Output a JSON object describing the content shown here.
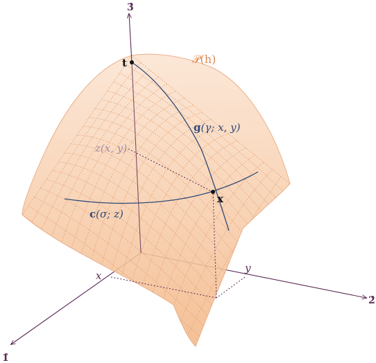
{
  "axes": {
    "e1": "1̂",
    "e2": "2̂",
    "e3": "3̂",
    "x": "x",
    "y": "y"
  },
  "surface": {
    "label": "𝒫(h)"
  },
  "points": {
    "t": "t",
    "x": "x"
  },
  "curves": {
    "g_bold": "g",
    "g_args": "(γ; x, y)",
    "c_bold": "c",
    "c_args": "(σ; z)",
    "z_label": "z(x, y)"
  },
  "colors": {
    "axis": "#5b2a55",
    "surface_fill": "#f8d3b6",
    "surface_grid": "#e39a6a",
    "surface_label": "#e08a50",
    "curve": "#2f4a78",
    "dotted": "#5b2a55",
    "zlabel": "#a58aa0"
  }
}
